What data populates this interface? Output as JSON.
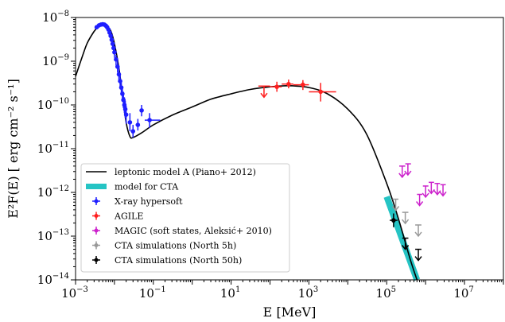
{
  "chart_data": {
    "type": "scatter",
    "xlabel": "E [MeV]",
    "ylabel": "E²F(E) [ erg cm⁻² s⁻¹]",
    "xscale": "log",
    "yscale": "log",
    "xlim": [
      0.001,
      100000000
    ],
    "ylim": [
      1e-14,
      1e-08
    ],
    "grid": false,
    "legend_position": "lower-left",
    "x_ticks": [
      {
        "value": 0.001,
        "base": "10",
        "exp": "−3"
      },
      {
        "value": 0.1,
        "base": "10",
        "exp": "−1"
      },
      {
        "value": 10,
        "base": "10",
        "exp": "1"
      },
      {
        "value": 1000,
        "base": "10",
        "exp": "3"
      },
      {
        "value": 100000,
        "base": "10",
        "exp": "5"
      },
      {
        "value": 10000000,
        "base": "10",
        "exp": "7"
      }
    ],
    "y_ticks": [
      {
        "value": 1e-08,
        "base": "10",
        "exp": "−8"
      },
      {
        "value": 1e-09,
        "base": "10",
        "exp": "−9"
      },
      {
        "value": 1e-10,
        "base": "10",
        "exp": "−10"
      },
      {
        "value": 1e-11,
        "base": "10",
        "exp": "−11"
      },
      {
        "value": 1e-12,
        "base": "10",
        "exp": "−12"
      },
      {
        "value": 1e-13,
        "base": "10",
        "exp": "−13"
      },
      {
        "value": 1e-14,
        "base": "10",
        "exp": "−14"
      }
    ],
    "legend": [
      {
        "label": "leptonic model A (Piano+ 2012)",
        "color": "#000000",
        "kind": "line"
      },
      {
        "label": "model for CTA",
        "color": "#25c4c4",
        "kind": "band"
      },
      {
        "label": "X-ray hypersoft",
        "color": "#1f1fff",
        "kind": "errorbar"
      },
      {
        "label": "AGILE",
        "color": "#ff1f1f",
        "kind": "errorbar"
      },
      {
        "label": "MAGIC (soft states, Aleksić+ 2010)",
        "color": "#cc22cc",
        "kind": "errorbar"
      },
      {
        "label": "CTA simulations (North 5h)",
        "color": "#999999",
        "kind": "errorbar"
      },
      {
        "label": "CTA simulations (North 50h)",
        "color": "#000000",
        "kind": "errorbar"
      }
    ],
    "model_curve": {
      "name": "leptonic model A (Piano+ 2012)",
      "color": "#000000",
      "x": [
        0.001,
        0.0015,
        0.002,
        0.003,
        0.004,
        0.005,
        0.006,
        0.008,
        0.01,
        0.013,
        0.016,
        0.02,
        0.025,
        0.03,
        0.05,
        0.1,
        0.3,
        1,
        3,
        10,
        30,
        100,
        300,
        1000,
        3000,
        10000,
        30000,
        100000,
        200000,
        400000,
        600000
      ],
      "y": [
        4.5e-10,
        1.3e-09,
        2.6e-09,
        4.8e-09,
        6.3e-09,
        6.8e-09,
        6.6e-09,
        5e-09,
        2.5e-09,
        7e-10,
        1.8e-10,
        4e-11,
        1.9e-11,
        1.8e-11,
        2.3e-11,
        3.5e-11,
        5.8e-11,
        9e-11,
        1.35e-10,
        1.8e-10,
        2.25e-10,
        2.6e-10,
        2.75e-10,
        2.5e-10,
        1.8e-10,
        8e-11,
        2.2e-11,
        1.6e-12,
        2.5e-13,
        3e-14,
        1e-14
      ]
    },
    "cta_band": {
      "name": "model for CTA",
      "color": "#25c4c4",
      "x": [
        100000,
        600000
      ],
      "y": [
        8e-13,
        1e-14
      ]
    },
    "series": [
      {
        "name": "X-ray hypersoft",
        "color": "#1f1fff",
        "points": [
          {
            "x": 0.0035,
            "y": 6e-09,
            "ylo": 5.4e-09,
            "yhi": 6.6e-09,
            "xlo": 0.0033,
            "xhi": 0.0037
          },
          {
            "x": 0.004,
            "y": 6.6e-09,
            "ylo": 6e-09,
            "yhi": 7.2e-09,
            "xlo": 0.0038,
            "xhi": 0.0042
          },
          {
            "x": 0.0045,
            "y": 6.9e-09,
            "ylo": 6.3e-09,
            "yhi": 7.5e-09,
            "xlo": 0.0043,
            "xhi": 0.0047
          },
          {
            "x": 0.005,
            "y": 7e-09,
            "ylo": 6.4e-09,
            "yhi": 7.6e-09,
            "xlo": 0.0048,
            "xhi": 0.0052
          },
          {
            "x": 0.0055,
            "y": 6.9e-09,
            "ylo": 6.3e-09,
            "yhi": 7.5e-09,
            "xlo": 0.0053,
            "xhi": 0.0057
          },
          {
            "x": 0.006,
            "y": 6.5e-09,
            "ylo": 5.9e-09,
            "yhi": 7.1e-09,
            "xlo": 0.0058,
            "xhi": 0.0062
          },
          {
            "x": 0.0065,
            "y": 6e-09,
            "ylo": 5.4e-09,
            "yhi": 6.6e-09,
            "xlo": 0.0063,
            "xhi": 0.0067
          },
          {
            "x": 0.007,
            "y": 5.3e-09,
            "ylo": 4.7e-09,
            "yhi": 5.9e-09,
            "xlo": 0.0068,
            "xhi": 0.0072
          },
          {
            "x": 0.0075,
            "y": 4.5e-09,
            "ylo": 3.9e-09,
            "yhi": 5.1e-09,
            "xlo": 0.0073,
            "xhi": 0.0077
          },
          {
            "x": 0.008,
            "y": 3.8e-09,
            "ylo": 3.2e-09,
            "yhi": 4.4e-09,
            "xlo": 0.0078,
            "xhi": 0.0082
          },
          {
            "x": 0.0085,
            "y": 3.1e-09,
            "ylo": 2.6e-09,
            "yhi": 3.6e-09,
            "xlo": 0.0083,
            "xhi": 0.0087
          },
          {
            "x": 0.009,
            "y": 2.5e-09,
            "ylo": 2e-09,
            "yhi": 3e-09,
            "xlo": 0.0088,
            "xhi": 0.0092
          },
          {
            "x": 0.0095,
            "y": 2e-09,
            "ylo": 1.6e-09,
            "yhi": 2.5e-09,
            "xlo": 0.0093,
            "xhi": 0.0097
          },
          {
            "x": 0.01,
            "y": 1.6e-09,
            "ylo": 1.2e-09,
            "yhi": 2e-09,
            "xlo": 0.0098,
            "xhi": 0.0102
          },
          {
            "x": 0.011,
            "y": 1.1e-09,
            "ylo": 8e-10,
            "yhi": 1.4e-09,
            "xlo": 0.0105,
            "xhi": 0.0115
          },
          {
            "x": 0.012,
            "y": 7.5e-10,
            "ylo": 5.5e-10,
            "yhi": 1e-09,
            "xlo": 0.0115,
            "xhi": 0.0125
          },
          {
            "x": 0.013,
            "y": 5e-10,
            "ylo": 3.5e-10,
            "yhi": 7e-10,
            "xlo": 0.0125,
            "xhi": 0.0135
          },
          {
            "x": 0.014,
            "y": 3.5e-10,
            "ylo": 2.4e-10,
            "yhi": 5e-10,
            "xlo": 0.0135,
            "xhi": 0.0145
          },
          {
            "x": 0.015,
            "y": 2.5e-10,
            "ylo": 1.7e-10,
            "yhi": 3.6e-10,
            "xlo": 0.0145,
            "xhi": 0.0155
          },
          {
            "x": 0.016,
            "y": 1.8e-10,
            "ylo": 1.2e-10,
            "yhi": 2.7e-10,
            "xlo": 0.0155,
            "xhi": 0.0165
          },
          {
            "x": 0.017,
            "y": 1.3e-10,
            "ylo": 8.5e-11,
            "yhi": 2e-10,
            "xlo": 0.0165,
            "xhi": 0.0175
          },
          {
            "x": 0.018,
            "y": 1e-10,
            "ylo": 6.5e-11,
            "yhi": 1.5e-10,
            "xlo": 0.0175,
            "xhi": 0.0185
          },
          {
            "x": 0.019,
            "y": 8e-11,
            "ylo": 5e-11,
            "yhi": 1.25e-10,
            "xlo": 0.0185,
            "xhi": 0.0195
          },
          {
            "x": 0.02,
            "y": 6e-11,
            "ylo": 3.7e-11,
            "yhi": 9.5e-11,
            "xlo": 0.0195,
            "xhi": 0.0205
          },
          {
            "x": 0.025,
            "y": 4e-11,
            "ylo": 2.5e-11,
            "yhi": 6.5e-11,
            "xlo": 0.023,
            "xhi": 0.027
          },
          {
            "x": 0.03,
            "y": 2.5e-11,
            "ylo": 1.8e-11,
            "yhi": 3.5e-11,
            "xlo": 0.028,
            "xhi": 0.032
          },
          {
            "x": 0.04,
            "y": 3.5e-11,
            "ylo": 2.6e-11,
            "yhi": 4.8e-11,
            "xlo": 0.035,
            "xhi": 0.045
          },
          {
            "x": 0.05,
            "y": 7.5e-11,
            "ylo": 5.5e-11,
            "yhi": 1e-10,
            "xlo": 0.045,
            "xhi": 0.055
          },
          {
            "x": 0.08,
            "y": 4.5e-11,
            "ylo": 3e-11,
            "yhi": 6.5e-11,
            "xlo": 0.06,
            "xhi": 0.15
          }
        ]
      },
      {
        "name": "AGILE",
        "color": "#ff1f1f",
        "points": [
          {
            "x": 70,
            "y": 2.7e-10,
            "ylo": 1.5e-10,
            "yhi": 3.8e-10,
            "xlo": 50,
            "xhi": 100,
            "upper_limit": true
          },
          {
            "x": 150,
            "y": 2.6e-10,
            "ylo": 2e-10,
            "yhi": 3.4e-10,
            "xlo": 100,
            "xhi": 200
          },
          {
            "x": 300,
            "y": 3e-10,
            "ylo": 2.4e-10,
            "yhi": 3.8e-10,
            "xlo": 200,
            "xhi": 400
          },
          {
            "x": 700,
            "y": 2.9e-10,
            "ylo": 2.2e-10,
            "yhi": 3.7e-10,
            "xlo": 400,
            "xhi": 1000
          },
          {
            "x": 2000,
            "y": 2e-10,
            "ylo": 1.2e-10,
            "yhi": 3.2e-10,
            "xlo": 1000,
            "xhi": 5000
          }
        ]
      },
      {
        "name": "MAGIC (soft states, Aleksić+ 2010)",
        "color": "#cc22cc",
        "points": [
          {
            "x": 250000,
            "y": 4e-12,
            "xlo": 210000,
            "xhi": 300000,
            "upper_limit": true
          },
          {
            "x": 350000,
            "y": 4.5e-12,
            "xlo": 300000,
            "xhi": 420000,
            "upper_limit": true
          },
          {
            "x": 700000,
            "y": 9e-13,
            "xlo": 600000,
            "xhi": 820000,
            "upper_limit": true
          },
          {
            "x": 1000000,
            "y": 1.4e-12,
            "xlo": 850000,
            "xhi": 1180000,
            "upper_limit": true
          },
          {
            "x": 1400000,
            "y": 1.7e-12,
            "xlo": 1200000,
            "xhi": 1650000,
            "upper_limit": true
          },
          {
            "x": 2000000,
            "y": 1.6e-12,
            "xlo": 1700000,
            "xhi": 2350000,
            "upper_limit": true
          },
          {
            "x": 2800000,
            "y": 1.5e-12,
            "xlo": 2400000,
            "xhi": 3300000,
            "upper_limit": true
          }
        ]
      },
      {
        "name": "CTA simulations (North 5h)",
        "color": "#999999",
        "points": [
          {
            "x": 170000,
            "y": 7e-13,
            "xlo": 140000,
            "xhi": 200000,
            "upper_limit": true
          },
          {
            "x": 300000,
            "y": 3.5e-13,
            "xlo": 250000,
            "xhi": 360000,
            "upper_limit": true
          },
          {
            "x": 650000,
            "y": 1.8e-13,
            "xlo": 540000,
            "xhi": 780000,
            "upper_limit": true
          }
        ]
      },
      {
        "name": "CTA simulations (North 50h)",
        "color": "#000000",
        "points": [
          {
            "x": 150000,
            "y": 2.3e-13,
            "ylo": 1.6e-13,
            "yhi": 3.3e-13,
            "xlo": 120000,
            "xhi": 190000
          },
          {
            "x": 300000,
            "y": 9e-14,
            "xlo": 250000,
            "xhi": 360000,
            "upper_limit": true
          },
          {
            "x": 650000,
            "y": 5e-14,
            "xlo": 540000,
            "xhi": 780000,
            "upper_limit": true
          }
        ]
      }
    ]
  }
}
